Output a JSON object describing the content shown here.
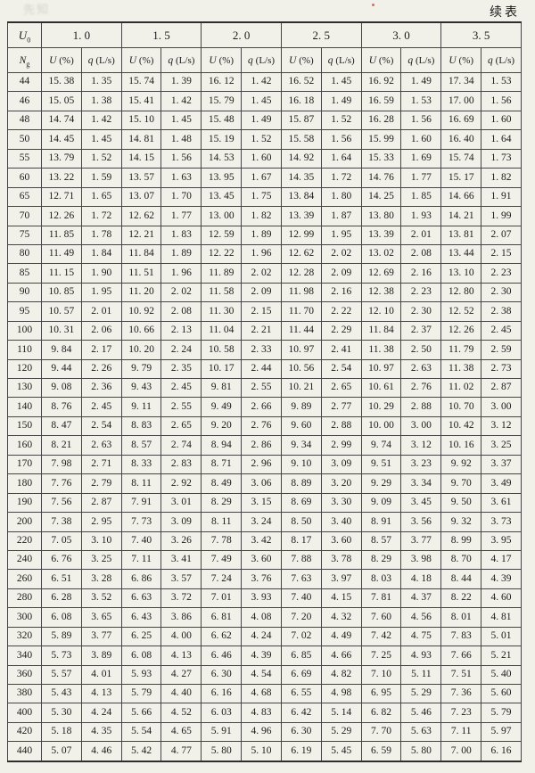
{
  "page": {
    "continued_label": "续表",
    "stamp_text": "先知"
  },
  "table": {
    "u0_sym": "U",
    "u0_sub": "0",
    "ng_sym": "N",
    "ng_sub": "g",
    "groups": [
      "1. 0",
      "1. 5",
      "2. 0",
      "2. 5",
      "3. 0",
      "3. 5"
    ],
    "u_sym": "U",
    "u_unit": "(%)",
    "q_sym": "q",
    "q_unit": "(L/s)",
    "rows": [
      {
        "ng": "44",
        "cells": [
          "15. 38",
          "1. 35",
          "15. 74",
          "1. 39",
          "16. 12",
          "1. 42",
          "16. 52",
          "1. 45",
          "16. 92",
          "1. 49",
          "17. 34",
          "1. 53"
        ]
      },
      {
        "ng": "46",
        "cells": [
          "15. 05",
          "1. 38",
          "15. 41",
          "1. 42",
          "15. 79",
          "1. 45",
          "16. 18",
          "1. 49",
          "16. 59",
          "1. 53",
          "17. 00",
          "1. 56"
        ]
      },
      {
        "ng": "48",
        "cells": [
          "14. 74",
          "1. 42",
          "15. 10",
          "1. 45",
          "15. 48",
          "1. 49",
          "15. 87",
          "1. 52",
          "16. 28",
          "1. 56",
          "16. 69",
          "1. 60"
        ]
      },
      {
        "ng": "50",
        "cells": [
          "14. 45",
          "1. 45",
          "14. 81",
          "1. 48",
          "15. 19",
          "1. 52",
          "15. 58",
          "1. 56",
          "15. 99",
          "1. 60",
          "16. 40",
          "1. 64"
        ]
      },
      {
        "ng": "55",
        "cells": [
          "13. 79",
          "1. 52",
          "14. 15",
          "1. 56",
          "14. 53",
          "1. 60",
          "14. 92",
          "1. 64",
          "15. 33",
          "1. 69",
          "15. 74",
          "1. 73"
        ]
      },
      {
        "ng": "60",
        "cells": [
          "13. 22",
          "1. 59",
          "13. 57",
          "1. 63",
          "13. 95",
          "1. 67",
          "14. 35",
          "1. 72",
          "14. 76",
          "1. 77",
          "15. 17",
          "1. 82"
        ]
      },
      {
        "ng": "65",
        "cells": [
          "12. 71",
          "1. 65",
          "13. 07",
          "1. 70",
          "13. 45",
          "1. 75",
          "13. 84",
          "1. 80",
          "14. 25",
          "1. 85",
          "14. 66",
          "1. 91"
        ]
      },
      {
        "ng": "70",
        "cells": [
          "12. 26",
          "1. 72",
          "12. 62",
          "1. 77",
          "13. 00",
          "1. 82",
          "13. 39",
          "1. 87",
          "13. 80",
          "1. 93",
          "14. 21",
          "1. 99"
        ]
      },
      {
        "ng": "75",
        "cells": [
          "11. 85",
          "1. 78",
          "12. 21",
          "1. 83",
          "12. 59",
          "1. 89",
          "12. 99",
          "1. 95",
          "13. 39",
          "2. 01",
          "13. 81",
          "2. 07"
        ]
      },
      {
        "ng": "80",
        "cells": [
          "11. 49",
          "1. 84",
          "11. 84",
          "1. 89",
          "12. 22",
          "1. 96",
          "12. 62",
          "2. 02",
          "13. 02",
          "2. 08",
          "13. 44",
          "2. 15"
        ]
      },
      {
        "ng": "85",
        "cells": [
          "11. 15",
          "1. 90",
          "11. 51",
          "1. 96",
          "11. 89",
          "2. 02",
          "12. 28",
          "2. 09",
          "12. 69",
          "2. 16",
          "13. 10",
          "2. 23"
        ]
      },
      {
        "ng": "90",
        "cells": [
          "10. 85",
          "1. 95",
          "11. 20",
          "2. 02",
          "11. 58",
          "2. 09",
          "11. 98",
          "2. 16",
          "12. 38",
          "2. 23",
          "12. 80",
          "2. 30"
        ]
      },
      {
        "ng": "95",
        "cells": [
          "10. 57",
          "2. 01",
          "10. 92",
          "2. 08",
          "11. 30",
          "2. 15",
          "11. 70",
          "2. 22",
          "12. 10",
          "2. 30",
          "12. 52",
          "2. 38"
        ]
      },
      {
        "ng": "100",
        "cells": [
          "10. 31",
          "2. 06",
          "10. 66",
          "2. 13",
          "11. 04",
          "2. 21",
          "11. 44",
          "2. 29",
          "11. 84",
          "2. 37",
          "12. 26",
          "2. 45"
        ]
      },
      {
        "ng": "110",
        "cells": [
          "9. 84",
          "2. 17",
          "10. 20",
          "2. 24",
          "10. 58",
          "2. 33",
          "10. 97",
          "2. 41",
          "11. 38",
          "2. 50",
          "11. 79",
          "2. 59"
        ]
      },
      {
        "ng": "120",
        "cells": [
          "9. 44",
          "2. 26",
          "9. 79",
          "2. 35",
          "10. 17",
          "2. 44",
          "10. 56",
          "2. 54",
          "10. 97",
          "2. 63",
          "11. 38",
          "2. 73"
        ]
      },
      {
        "ng": "130",
        "cells": [
          "9. 08",
          "2. 36",
          "9. 43",
          "2. 45",
          "9. 81",
          "2. 55",
          "10. 21",
          "2. 65",
          "10. 61",
          "2. 76",
          "11. 02",
          "2. 87"
        ]
      },
      {
        "ng": "140",
        "cells": [
          "8. 76",
          "2. 45",
          "9. 11",
          "2. 55",
          "9. 49",
          "2. 66",
          "9. 89",
          "2. 77",
          "10. 29",
          "2. 88",
          "10. 70",
          "3. 00"
        ]
      },
      {
        "ng": "150",
        "cells": [
          "8. 47",
          "2. 54",
          "8. 83",
          "2. 65",
          "9. 20",
          "2. 76",
          "9. 60",
          "2. 88",
          "10. 00",
          "3. 00",
          "10. 42",
          "3. 12"
        ]
      },
      {
        "ng": "160",
        "cells": [
          "8. 21",
          "2. 63",
          "8. 57",
          "2. 74",
          "8. 94",
          "2. 86",
          "9. 34",
          "2. 99",
          "9. 74",
          "3. 12",
          "10. 16",
          "3. 25"
        ]
      },
      {
        "ng": "170",
        "cells": [
          "7. 98",
          "2. 71",
          "8. 33",
          "2. 83",
          "8. 71",
          "2. 96",
          "9. 10",
          "3. 09",
          "9. 51",
          "3. 23",
          "9. 92",
          "3. 37"
        ]
      },
      {
        "ng": "180",
        "cells": [
          "7. 76",
          "2. 79",
          "8. 11",
          "2. 92",
          "8. 49",
          "3. 06",
          "8. 89",
          "3. 20",
          "9. 29",
          "3. 34",
          "9. 70",
          "3. 49"
        ]
      },
      {
        "ng": "190",
        "cells": [
          "7. 56",
          "2. 87",
          "7. 91",
          "3. 01",
          "8. 29",
          "3. 15",
          "8. 69",
          "3. 30",
          "9. 09",
          "3. 45",
          "9. 50",
          "3. 61"
        ]
      },
      {
        "ng": "200",
        "cells": [
          "7. 38",
          "2. 95",
          "7. 73",
          "3. 09",
          "8. 11",
          "3. 24",
          "8. 50",
          "3. 40",
          "8. 91",
          "3. 56",
          "9. 32",
          "3. 73"
        ]
      },
      {
        "ng": "220",
        "cells": [
          "7. 05",
          "3. 10",
          "7. 40",
          "3. 26",
          "7. 78",
          "3. 42",
          "8. 17",
          "3. 60",
          "8. 57",
          "3. 77",
          "8. 99",
          "3. 95"
        ]
      },
      {
        "ng": "240",
        "cells": [
          "6. 76",
          "3. 25",
          "7. 11",
          "3. 41",
          "7. 49",
          "3. 60",
          "7. 88",
          "3. 78",
          "8. 29",
          "3. 98",
          "8. 70",
          "4. 17"
        ]
      },
      {
        "ng": "260",
        "cells": [
          "6. 51",
          "3. 28",
          "6. 86",
          "3. 57",
          "7. 24",
          "3. 76",
          "7. 63",
          "3. 97",
          "8. 03",
          "4. 18",
          "8. 44",
          "4. 39"
        ]
      },
      {
        "ng": "280",
        "cells": [
          "6. 28",
          "3. 52",
          "6. 63",
          "3. 72",
          "7. 01",
          "3. 93",
          "7. 40",
          "4. 15",
          "7. 81",
          "4. 37",
          "8. 22",
          "4. 60"
        ]
      },
      {
        "ng": "300",
        "cells": [
          "6. 08",
          "3. 65",
          "6. 43",
          "3. 86",
          "6. 81",
          "4. 08",
          "7. 20",
          "4. 32",
          "7. 60",
          "4. 56",
          "8. 01",
          "4. 81"
        ]
      },
      {
        "ng": "320",
        "cells": [
          "5. 89",
          "3. 77",
          "6. 25",
          "4. 00",
          "6. 62",
          "4. 24",
          "7. 02",
          "4. 49",
          "7. 42",
          "4. 75",
          "7. 83",
          "5. 01"
        ]
      },
      {
        "ng": "340",
        "cells": [
          "5. 73",
          "3. 89",
          "6. 08",
          "4. 13",
          "6. 46",
          "4. 39",
          "6. 85",
          "4. 66",
          "7. 25",
          "4. 93",
          "7. 66",
          "5. 21"
        ]
      },
      {
        "ng": "360",
        "cells": [
          "5. 57",
          "4. 01",
          "5. 93",
          "4. 27",
          "6. 30",
          "4. 54",
          "6. 69",
          "4. 82",
          "7. 10",
          "5. 11",
          "7. 51",
          "5. 40"
        ]
      },
      {
        "ng": "380",
        "cells": [
          "5. 43",
          "4. 13",
          "5. 79",
          "4. 40",
          "6. 16",
          "4. 68",
          "6. 55",
          "4. 98",
          "6. 95",
          "5. 29",
          "7. 36",
          "5. 60"
        ]
      },
      {
        "ng": "400",
        "cells": [
          "5. 30",
          "4. 24",
          "5. 66",
          "4. 52",
          "6. 03",
          "4. 83",
          "6. 42",
          "5. 14",
          "6. 82",
          "5. 46",
          "7. 23",
          "5. 79"
        ]
      },
      {
        "ng": "420",
        "cells": [
          "5. 18",
          "4. 35",
          "5. 54",
          "4. 65",
          "5. 91",
          "4. 96",
          "6. 30",
          "5. 29",
          "7. 70",
          "5. 63",
          "7. 11",
          "5. 97"
        ]
      },
      {
        "ng": "440",
        "cells": [
          "5. 07",
          "4. 46",
          "5. 42",
          "4. 77",
          "5. 80",
          "5. 10",
          "6. 19",
          "5. 45",
          "6. 59",
          "5. 80",
          "7. 00",
          "6. 16"
        ]
      }
    ]
  }
}
